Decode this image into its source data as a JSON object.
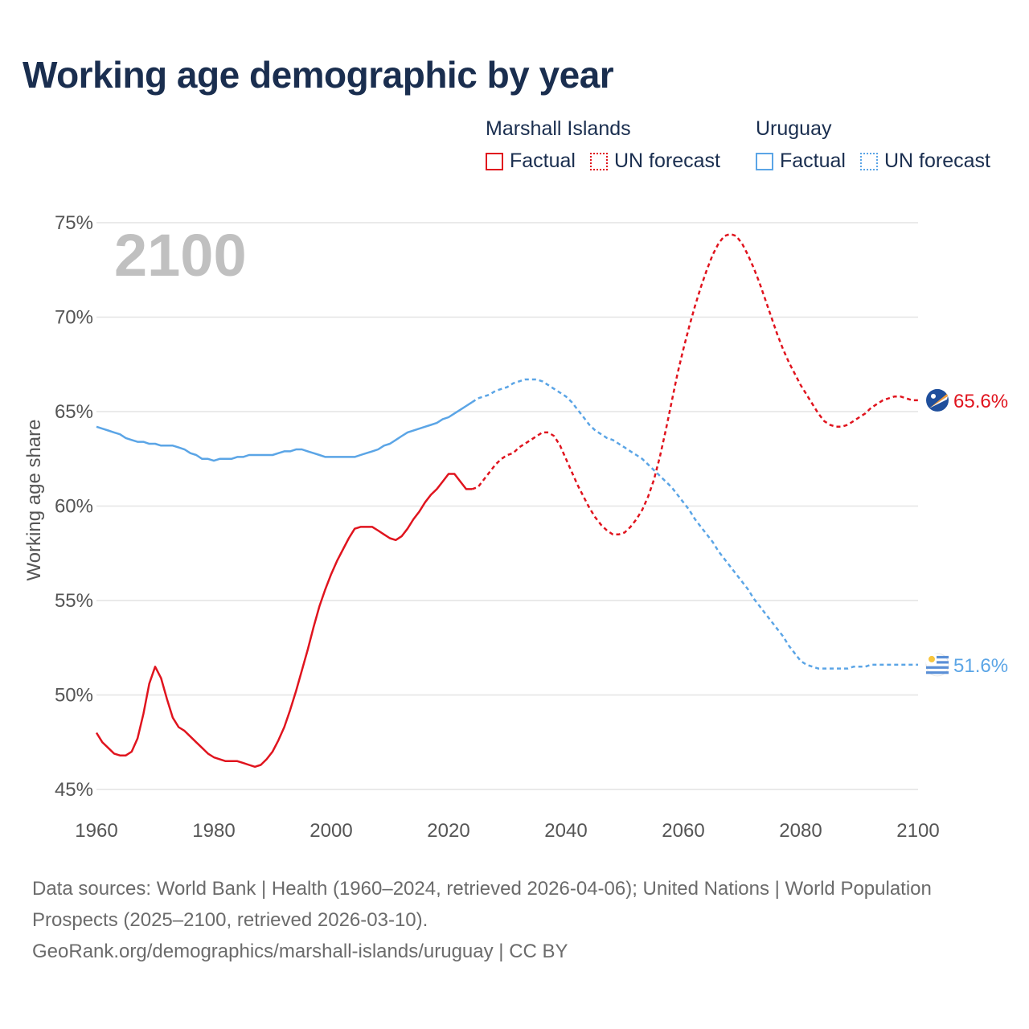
{
  "title": "Working age demographic by year",
  "legend": {
    "groups": [
      {
        "name": "Marshall Islands",
        "factual": "Factual",
        "forecast": "UN forecast",
        "color": "#e0141e"
      },
      {
        "name": "Uruguay",
        "factual": "Factual",
        "forecast": "UN forecast",
        "color": "#5ba5e6"
      }
    ]
  },
  "footer": {
    "sources": "Data sources: World Bank | Health (1960–2024, retrieved 2026-04-06); United Nations | World Population Prospects (2025–2100, retrieved 2026-03-10).",
    "url": "GeoRank.org/demographics/marshall-islands/uruguay | CC BY"
  },
  "chart_data": {
    "type": "line",
    "title": "Working age demographic by year",
    "ylabel": "Working age share",
    "xlabel": "",
    "year_watermark": "2100",
    "xlim": [
      1960,
      2100
    ],
    "ylim": [
      45,
      75
    ],
    "x_ticks": [
      "1960",
      "1980",
      "2000",
      "2020",
      "2040",
      "2060",
      "2080",
      "2100"
    ],
    "y_ticks": [
      "45%",
      "50%",
      "55%",
      "60%",
      "65%",
      "70%",
      "75%"
    ],
    "factual_end": 2024,
    "series": [
      {
        "name": "Marshall Islands",
        "color": "#e0141e",
        "end_label": "65.6%",
        "flag_icon": "marshall-islands-flag-icon",
        "points": [
          [
            1960,
            48.0
          ],
          [
            1961,
            47.5
          ],
          [
            1962,
            47.2
          ],
          [
            1963,
            46.9
          ],
          [
            1964,
            46.8
          ],
          [
            1965,
            46.8
          ],
          [
            1966,
            47.0
          ],
          [
            1967,
            47.7
          ],
          [
            1968,
            49.0
          ],
          [
            1969,
            50.6
          ],
          [
            1970,
            51.5
          ],
          [
            1971,
            50.9
          ],
          [
            1972,
            49.8
          ],
          [
            1973,
            48.8
          ],
          [
            1974,
            48.3
          ],
          [
            1975,
            48.1
          ],
          [
            1976,
            47.8
          ],
          [
            1977,
            47.5
          ],
          [
            1978,
            47.2
          ],
          [
            1979,
            46.9
          ],
          [
            1980,
            46.7
          ],
          [
            1981,
            46.6
          ],
          [
            1982,
            46.5
          ],
          [
            1983,
            46.5
          ],
          [
            1984,
            46.5
          ],
          [
            1985,
            46.4
          ],
          [
            1986,
            46.3
          ],
          [
            1987,
            46.2
          ],
          [
            1988,
            46.3
          ],
          [
            1989,
            46.6
          ],
          [
            1990,
            47.0
          ],
          [
            1991,
            47.6
          ],
          [
            1992,
            48.3
          ],
          [
            1993,
            49.2
          ],
          [
            1994,
            50.2
          ],
          [
            1995,
            51.3
          ],
          [
            1996,
            52.4
          ],
          [
            1997,
            53.6
          ],
          [
            1998,
            54.7
          ],
          [
            1999,
            55.6
          ],
          [
            2000,
            56.4
          ],
          [
            2001,
            57.1
          ],
          [
            2002,
            57.7
          ],
          [
            2003,
            58.3
          ],
          [
            2004,
            58.8
          ],
          [
            2005,
            58.9
          ],
          [
            2006,
            58.9
          ],
          [
            2007,
            58.9
          ],
          [
            2008,
            58.7
          ],
          [
            2009,
            58.5
          ],
          [
            2010,
            58.3
          ],
          [
            2011,
            58.2
          ],
          [
            2012,
            58.4
          ],
          [
            2013,
            58.8
          ],
          [
            2014,
            59.3
          ],
          [
            2015,
            59.7
          ],
          [
            2016,
            60.2
          ],
          [
            2017,
            60.6
          ],
          [
            2018,
            60.9
          ],
          [
            2019,
            61.3
          ],
          [
            2020,
            61.7
          ],
          [
            2021,
            61.7
          ],
          [
            2022,
            61.3
          ],
          [
            2023,
            60.9
          ],
          [
            2024,
            60.9
          ],
          [
            2025,
            61.0
          ],
          [
            2026,
            61.4
          ],
          [
            2027,
            61.8
          ],
          [
            2028,
            62.2
          ],
          [
            2029,
            62.5
          ],
          [
            2030,
            62.7
          ],
          [
            2031,
            62.8
          ],
          [
            2032,
            63.1
          ],
          [
            2033,
            63.3
          ],
          [
            2034,
            63.5
          ],
          [
            2035,
            63.7
          ],
          [
            2036,
            63.9
          ],
          [
            2037,
            63.9
          ],
          [
            2038,
            63.7
          ],
          [
            2039,
            63.2
          ],
          [
            2040,
            62.5
          ],
          [
            2041,
            61.8
          ],
          [
            2042,
            61.1
          ],
          [
            2043,
            60.5
          ],
          [
            2044,
            59.9
          ],
          [
            2045,
            59.4
          ],
          [
            2046,
            59.0
          ],
          [
            2047,
            58.7
          ],
          [
            2048,
            58.5
          ],
          [
            2049,
            58.5
          ],
          [
            2050,
            58.6
          ],
          [
            2051,
            58.9
          ],
          [
            2052,
            59.3
          ],
          [
            2053,
            59.8
          ],
          [
            2054,
            60.5
          ],
          [
            2055,
            61.4
          ],
          [
            2056,
            62.6
          ],
          [
            2057,
            64.0
          ],
          [
            2058,
            65.5
          ],
          [
            2059,
            67.0
          ],
          [
            2060,
            68.3
          ],
          [
            2061,
            69.5
          ],
          [
            2062,
            70.6
          ],
          [
            2063,
            71.6
          ],
          [
            2064,
            72.5
          ],
          [
            2065,
            73.3
          ],
          [
            2066,
            73.9
          ],
          [
            2067,
            74.3
          ],
          [
            2068,
            74.4
          ],
          [
            2069,
            74.3
          ],
          [
            2070,
            73.9
          ],
          [
            2071,
            73.3
          ],
          [
            2072,
            72.6
          ],
          [
            2073,
            71.8
          ],
          [
            2074,
            70.9
          ],
          [
            2075,
            70.0
          ],
          [
            2076,
            69.1
          ],
          [
            2077,
            68.3
          ],
          [
            2078,
            67.6
          ],
          [
            2079,
            67.0
          ],
          [
            2080,
            66.4
          ],
          [
            2081,
            65.9
          ],
          [
            2082,
            65.4
          ],
          [
            2083,
            64.9
          ],
          [
            2084,
            64.5
          ],
          [
            2085,
            64.3
          ],
          [
            2086,
            64.2
          ],
          [
            2087,
            64.2
          ],
          [
            2088,
            64.3
          ],
          [
            2089,
            64.5
          ],
          [
            2090,
            64.7
          ],
          [
            2091,
            64.9
          ],
          [
            2092,
            65.2
          ],
          [
            2093,
            65.4
          ],
          [
            2094,
            65.6
          ],
          [
            2095,
            65.7
          ],
          [
            2096,
            65.8
          ],
          [
            2097,
            65.8
          ],
          [
            2098,
            65.7
          ],
          [
            2099,
            65.6
          ],
          [
            2100,
            65.6
          ]
        ]
      },
      {
        "name": "Uruguay",
        "color": "#5ba5e6",
        "end_label": "51.6%",
        "flag_icon": "uruguay-flag-icon",
        "points": [
          [
            1960,
            64.2
          ],
          [
            1961,
            64.1
          ],
          [
            1962,
            64.0
          ],
          [
            1963,
            63.9
          ],
          [
            1964,
            63.8
          ],
          [
            1965,
            63.6
          ],
          [
            1966,
            63.5
          ],
          [
            1967,
            63.4
          ],
          [
            1968,
            63.4
          ],
          [
            1969,
            63.3
          ],
          [
            1970,
            63.3
          ],
          [
            1971,
            63.2
          ],
          [
            1972,
            63.2
          ],
          [
            1973,
            63.2
          ],
          [
            1974,
            63.1
          ],
          [
            1975,
            63.0
          ],
          [
            1976,
            62.8
          ],
          [
            1977,
            62.7
          ],
          [
            1978,
            62.5
          ],
          [
            1979,
            62.5
          ],
          [
            1980,
            62.4
          ],
          [
            1981,
            62.5
          ],
          [
            1982,
            62.5
          ],
          [
            1983,
            62.5
          ],
          [
            1984,
            62.6
          ],
          [
            1985,
            62.6
          ],
          [
            1986,
            62.7
          ],
          [
            1987,
            62.7
          ],
          [
            1988,
            62.7
          ],
          [
            1989,
            62.7
          ],
          [
            1990,
            62.7
          ],
          [
            1991,
            62.8
          ],
          [
            1992,
            62.9
          ],
          [
            1993,
            62.9
          ],
          [
            1994,
            63.0
          ],
          [
            1995,
            63.0
          ],
          [
            1996,
            62.9
          ],
          [
            1997,
            62.8
          ],
          [
            1998,
            62.7
          ],
          [
            1999,
            62.6
          ],
          [
            2000,
            62.6
          ],
          [
            2001,
            62.6
          ],
          [
            2002,
            62.6
          ],
          [
            2003,
            62.6
          ],
          [
            2004,
            62.6
          ],
          [
            2005,
            62.7
          ],
          [
            2006,
            62.8
          ],
          [
            2007,
            62.9
          ],
          [
            2008,
            63.0
          ],
          [
            2009,
            63.2
          ],
          [
            2010,
            63.3
          ],
          [
            2011,
            63.5
          ],
          [
            2012,
            63.7
          ],
          [
            2013,
            63.9
          ],
          [
            2014,
            64.0
          ],
          [
            2015,
            64.1
          ],
          [
            2016,
            64.2
          ],
          [
            2017,
            64.3
          ],
          [
            2018,
            64.4
          ],
          [
            2019,
            64.6
          ],
          [
            2020,
            64.7
          ],
          [
            2021,
            64.9
          ],
          [
            2022,
            65.1
          ],
          [
            2023,
            65.3
          ],
          [
            2024,
            65.5
          ],
          [
            2025,
            65.7
          ],
          [
            2026,
            65.8
          ],
          [
            2027,
            65.9
          ],
          [
            2028,
            66.1
          ],
          [
            2029,
            66.2
          ],
          [
            2030,
            66.3
          ],
          [
            2031,
            66.5
          ],
          [
            2032,
            66.6
          ],
          [
            2033,
            66.7
          ],
          [
            2034,
            66.7
          ],
          [
            2035,
            66.7
          ],
          [
            2036,
            66.6
          ],
          [
            2037,
            66.4
          ],
          [
            2038,
            66.2
          ],
          [
            2039,
            66.0
          ],
          [
            2040,
            65.8
          ],
          [
            2041,
            65.5
          ],
          [
            2042,
            65.1
          ],
          [
            2043,
            64.7
          ],
          [
            2044,
            64.3
          ],
          [
            2045,
            64.0
          ],
          [
            2046,
            63.8
          ],
          [
            2047,
            63.6
          ],
          [
            2048,
            63.5
          ],
          [
            2049,
            63.3
          ],
          [
            2050,
            63.1
          ],
          [
            2051,
            62.9
          ],
          [
            2052,
            62.7
          ],
          [
            2053,
            62.5
          ],
          [
            2054,
            62.2
          ],
          [
            2055,
            61.9
          ],
          [
            2056,
            61.6
          ],
          [
            2057,
            61.3
          ],
          [
            2058,
            61.0
          ],
          [
            2059,
            60.6
          ],
          [
            2060,
            60.2
          ],
          [
            2061,
            59.8
          ],
          [
            2062,
            59.3
          ],
          [
            2063,
            58.9
          ],
          [
            2064,
            58.5
          ],
          [
            2065,
            58.1
          ],
          [
            2066,
            57.6
          ],
          [
            2067,
            57.2
          ],
          [
            2068,
            56.8
          ],
          [
            2069,
            56.4
          ],
          [
            2070,
            56.0
          ],
          [
            2071,
            55.6
          ],
          [
            2072,
            55.1
          ],
          [
            2073,
            54.7
          ],
          [
            2074,
            54.3
          ],
          [
            2075,
            53.9
          ],
          [
            2076,
            53.5
          ],
          [
            2077,
            53.1
          ],
          [
            2078,
            52.6
          ],
          [
            2079,
            52.2
          ],
          [
            2080,
            51.8
          ],
          [
            2081,
            51.6
          ],
          [
            2082,
            51.5
          ],
          [
            2083,
            51.4
          ],
          [
            2084,
            51.4
          ],
          [
            2085,
            51.4
          ],
          [
            2086,
            51.4
          ],
          [
            2087,
            51.4
          ],
          [
            2088,
            51.4
          ],
          [
            2089,
            51.5
          ],
          [
            2090,
            51.5
          ],
          [
            2091,
            51.5
          ],
          [
            2092,
            51.6
          ],
          [
            2093,
            51.6
          ],
          [
            2094,
            51.6
          ],
          [
            2095,
            51.6
          ],
          [
            2096,
            51.6
          ],
          [
            2097,
            51.6
          ],
          [
            2098,
            51.6
          ],
          [
            2099,
            51.6
          ],
          [
            2100,
            51.6
          ]
        ]
      }
    ]
  }
}
